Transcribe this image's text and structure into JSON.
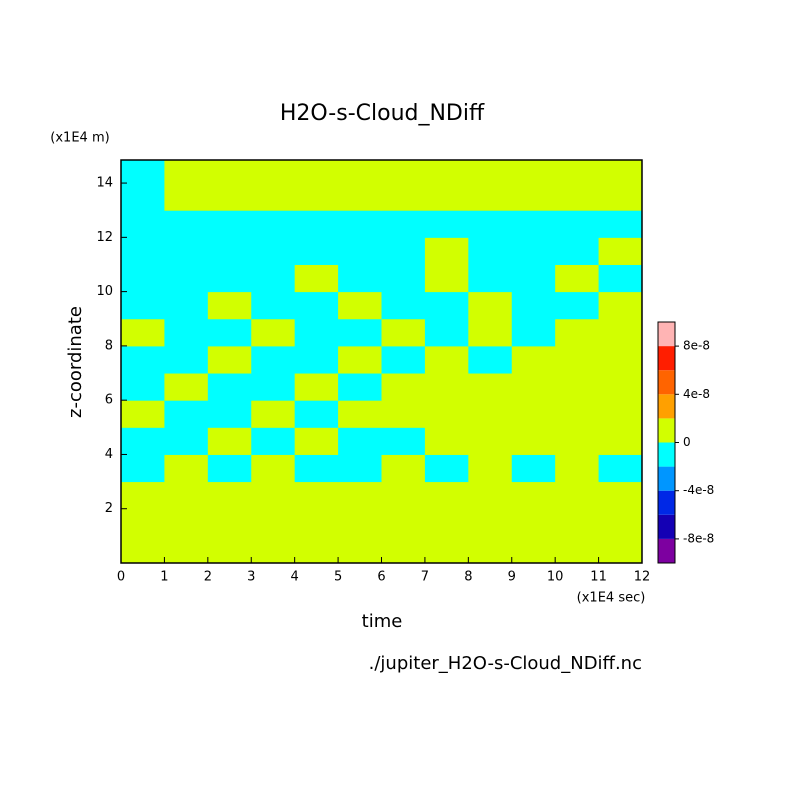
{
  "chart_data": {
    "type": "heatmap",
    "title": "H2O-s-Cloud_NDiff",
    "xlabel": "time",
    "xunit": "(x1E4 sec)",
    "ylabel": "z-coordinate",
    "yunit": "(x1E4 m)",
    "footnote": "./jupiter_H2O-s-Cloud_NDiff.nc",
    "xlim": [
      0,
      12
    ],
    "xticks": [
      0,
      1,
      2,
      3,
      4,
      5,
      6,
      7,
      8,
      9,
      10,
      11,
      12
    ],
    "ylim": [
      0,
      14.85
    ],
    "yticks": [
      2,
      4,
      6,
      8,
      10,
      12,
      14
    ],
    "x_edges": [
      0,
      1,
      2,
      3,
      4,
      5,
      6,
      7,
      8,
      9,
      10,
      11,
      12
    ],
    "y_edges": [
      0,
      1,
      2,
      3,
      4,
      5,
      6,
      7,
      8,
      9,
      10,
      11,
      12,
      13,
      14,
      14.85
    ],
    "z": [
      [
        0,
        0,
        0,
        0,
        0,
        0,
        0,
        0,
        0,
        0,
        0,
        0
      ],
      [
        0,
        0,
        0,
        0,
        0,
        0,
        0,
        0,
        0,
        0,
        0,
        0
      ],
      [
        0,
        0,
        0,
        0,
        0,
        0,
        0,
        0,
        0,
        0,
        0,
        0
      ],
      [
        -1e-08,
        0,
        -1e-08,
        0,
        -1e-08,
        -1e-08,
        0,
        -1e-08,
        0,
        -1e-08,
        0,
        -1e-08
      ],
      [
        -1e-08,
        -1e-08,
        0,
        -1e-08,
        0,
        -1e-08,
        -1e-08,
        0,
        0,
        0,
        0,
        0
      ],
      [
        0,
        -1e-08,
        -1e-08,
        0,
        -1e-08,
        0,
        0,
        0,
        0,
        0,
        0,
        0
      ],
      [
        -1e-08,
        0,
        -1e-08,
        -1e-08,
        0,
        -1e-08,
        0,
        0,
        0,
        0,
        0,
        0
      ],
      [
        -1e-08,
        -1e-08,
        0,
        -1e-08,
        -1e-08,
        0,
        -1e-08,
        0,
        -1e-08,
        0,
        0,
        0
      ],
      [
        0,
        -1e-08,
        -1e-08,
        0,
        -1e-08,
        -1e-08,
        0,
        -1e-08,
        0,
        -1e-08,
        0,
        0
      ],
      [
        -1e-08,
        -1e-08,
        0,
        -1e-08,
        -1e-08,
        0,
        -1e-08,
        -1e-08,
        0,
        -1e-08,
        -1e-08,
        0
      ],
      [
        -1e-08,
        -1e-08,
        -1e-08,
        -1e-08,
        0,
        -1e-08,
        -1e-08,
        0,
        -1e-08,
        -1e-08,
        0,
        -1e-08
      ],
      [
        -1e-08,
        -1e-08,
        -1e-08,
        -1e-08,
        -1e-08,
        -1e-08,
        -1e-08,
        0,
        -1e-08,
        -1e-08,
        -1e-08,
        0
      ],
      [
        -1e-08,
        -1e-08,
        -1e-08,
        -1e-08,
        -1e-08,
        -1e-08,
        -1e-08,
        -1e-08,
        -1e-08,
        -1e-08,
        -1e-08,
        -1e-08
      ],
      [
        -1e-08,
        0,
        0,
        0,
        0,
        0,
        0,
        0,
        0,
        0,
        0,
        0
      ],
      [
        -1e-08,
        0,
        0,
        0,
        0,
        0,
        0,
        0,
        0,
        0,
        0,
        0
      ]
    ],
    "colorbar": {
      "levels": [
        -1e-07,
        -8e-08,
        -6e-08,
        -4e-08,
        -2e-08,
        0,
        2e-08,
        4e-08,
        6e-08,
        8e-08,
        1e-07
      ],
      "colors": [
        "#7d00a0",
        "#1400b4",
        "#0028e6",
        "#0096ff",
        "#00ffff",
        "#d2ff00",
        "#ffa000",
        "#ff6400",
        "#ff1e00",
        "#ffb4b4"
      ],
      "ticks": [
        {
          "value": -8e-08,
          "label": "-8e-8"
        },
        {
          "value": -4e-08,
          "label": "-4e-8"
        },
        0,
        {
          "value": 4e-08,
          "label": "4e-8"
        },
        {
          "value": 8e-08,
          "label": "8e-8"
        }
      ]
    }
  }
}
